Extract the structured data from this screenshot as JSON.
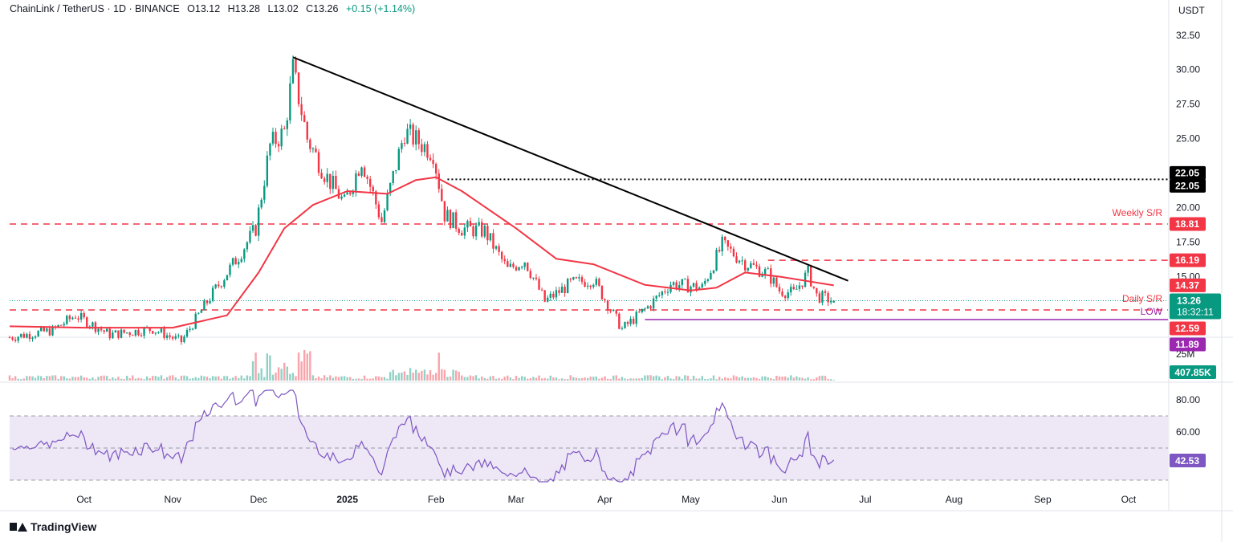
{
  "header": {
    "symbol": "ChainLink / TetherUS · 1D · BINANCE",
    "open": "O13.12",
    "high": "H13.28",
    "low": "L13.02",
    "close": "C13.26",
    "change": "+0.15 (+1.14%)"
  },
  "brand": "TradingView",
  "currency_label": "USDT",
  "colors": {
    "up": "#089981",
    "down": "#F23645",
    "ma": "#F23645",
    "trendline": "#000000",
    "support": "#F23645",
    "low_line": "#9C27B0",
    "rsi": "#7E57C2",
    "rsi_band": "#EDE7F6"
  },
  "chart_data": {
    "type": "candlestick",
    "price_axis": {
      "ticks": [
        32.5,
        30.0,
        27.5,
        25.0,
        20.0,
        17.5,
        15.0
      ],
      "labels": [
        "32.50",
        "30.00",
        "27.50",
        "25.00",
        "20.00",
        "17.50",
        "15.00"
      ],
      "ylim": [
        10.9,
        33.3
      ]
    },
    "x_axis": {
      "labels": [
        "Oct",
        "Nov",
        "Dec",
        "2025",
        "Feb",
        "Mar",
        "Apr",
        "May",
        "Jun",
        "Jul",
        "Aug",
        "Sep",
        "Oct"
      ],
      "label_dates": [
        "2024-10-01",
        "2024-11-01",
        "2024-12-01",
        "2025-01-01",
        "2025-02-01",
        "2025-03-01",
        "2025-04-01",
        "2025-05-01",
        "2025-06-01",
        "2025-07-01",
        "2025-08-01",
        "2025-09-01",
        "2025-10-01"
      ],
      "start_date": "2024-09-05",
      "end_date": "2025-06-20"
    },
    "price_path": [
      [
        "2024-09-05",
        10.6
      ],
      [
        "2024-09-20",
        11.1
      ],
      [
        "2024-09-28",
        12.2
      ],
      [
        "2024-10-10",
        10.8
      ],
      [
        "2024-10-25",
        11.2
      ],
      [
        "2024-11-04",
        10.3
      ],
      [
        "2024-11-14",
        13.5
      ],
      [
        "2024-11-24",
        16.5
      ],
      [
        "2024-11-30",
        18.5
      ],
      [
        "2024-12-05",
        24.5
      ],
      [
        "2024-12-10",
        25.5
      ],
      [
        "2024-12-13",
        30.0
      ],
      [
        "2024-12-18",
        25.0
      ],
      [
        "2024-12-24",
        22.5
      ],
      [
        "2024-12-31",
        20.3
      ],
      [
        "2025-01-06",
        23.5
      ],
      [
        "2025-01-13",
        19.0
      ],
      [
        "2025-01-21",
        25.5
      ],
      [
        "2025-01-31",
        24.0
      ],
      [
        "2025-02-04",
        19.5
      ],
      [
        "2025-02-10",
        18.5
      ],
      [
        "2025-02-18",
        18.3
      ],
      [
        "2025-02-26",
        15.5
      ],
      [
        "2025-03-04",
        16.2
      ],
      [
        "2025-03-11",
        13.2
      ],
      [
        "2025-03-20",
        14.5
      ],
      [
        "2025-03-28",
        14.8
      ],
      [
        "2025-04-07",
        11.2
      ],
      [
        "2025-04-16",
        12.8
      ],
      [
        "2025-04-24",
        14.5
      ],
      [
        "2025-05-05",
        14.2
      ],
      [
        "2025-05-12",
        17.3
      ],
      [
        "2025-05-20",
        16.0
      ],
      [
        "2025-05-28",
        15.2
      ],
      [
        "2025-06-01",
        14.0
      ],
      [
        "2025-06-06",
        13.8
      ],
      [
        "2025-06-11",
        15.3
      ],
      [
        "2025-06-14",
        13.6
      ],
      [
        "2025-06-20",
        13.26
      ]
    ],
    "ma": [
      [
        "2024-09-05",
        11.4
      ],
      [
        "2024-10-01",
        11.3
      ],
      [
        "2024-11-01",
        11.3
      ],
      [
        "2024-11-20",
        12.2
      ],
      [
        "2024-12-01",
        15.3
      ],
      [
        "2024-12-10",
        18.5
      ],
      [
        "2024-12-20",
        20.2
      ],
      [
        "2025-01-01",
        21.2
      ],
      [
        "2025-01-15",
        21.0
      ],
      [
        "2025-01-25",
        22.0
      ],
      [
        "2025-02-01",
        22.2
      ],
      [
        "2025-02-10",
        21.2
      ],
      [
        "2025-03-01",
        18.5
      ],
      [
        "2025-03-15",
        16.3
      ],
      [
        "2025-03-28",
        15.9
      ],
      [
        "2025-04-15",
        14.4
      ],
      [
        "2025-05-01",
        14.0
      ],
      [
        "2025-05-10",
        14.2
      ],
      [
        "2025-05-20",
        15.3
      ],
      [
        "2025-06-01",
        15.0
      ],
      [
        "2025-06-20",
        14.37
      ]
    ],
    "trendline": {
      "from": [
        "2024-12-13",
        30.9
      ],
      "to": [
        "2025-06-25",
        14.7
      ]
    },
    "levels": [
      {
        "name": "Weekly S/R",
        "value": 18.81,
        "style": "dashed",
        "color": "#F23645",
        "label": "Weekly S/R",
        "tag": "18.81"
      },
      {
        "name": "Daily S/R",
        "value": 12.59,
        "style": "dashed",
        "color": "#F23645",
        "label": "Daily S/R",
        "tag": "12.59"
      },
      {
        "value": 22.05,
        "style": "dotted",
        "color": "#000000",
        "start_date": "2025-02-05",
        "tag": "22.05"
      },
      {
        "value": 16.19,
        "style": "dashed",
        "color": "#F23645",
        "start_date": "2025-05-28",
        "tag": "16.19"
      },
      {
        "name": "LOW",
        "value": 11.89,
        "style": "solid",
        "color": "#9C27B0",
        "start_date": "2025-04-15",
        "label": "LOW",
        "tag": "11.89"
      }
    ],
    "price_tags": [
      {
        "value": 22.05,
        "text": "22.05",
        "color": "#000000",
        "offset": -8
      },
      {
        "value": 14.37,
        "text": "14.37",
        "color": "#F23645"
      },
      {
        "value": 13.26,
        "text": "13.26",
        "sub": "18:32:11",
        "color": "#089981"
      }
    ],
    "volume": {
      "axis_label": "25M",
      "last_label": "407.85K",
      "max": 28,
      "last": 0.41
    },
    "rsi": {
      "ticks": [
        80,
        60
      ],
      "labels": [
        "80.00",
        "60.00"
      ],
      "upper": 70,
      "mid": 50,
      "lower": 30,
      "last": 42.53,
      "last_label": "42.53",
      "ylim": [
        28,
        88
      ]
    }
  }
}
